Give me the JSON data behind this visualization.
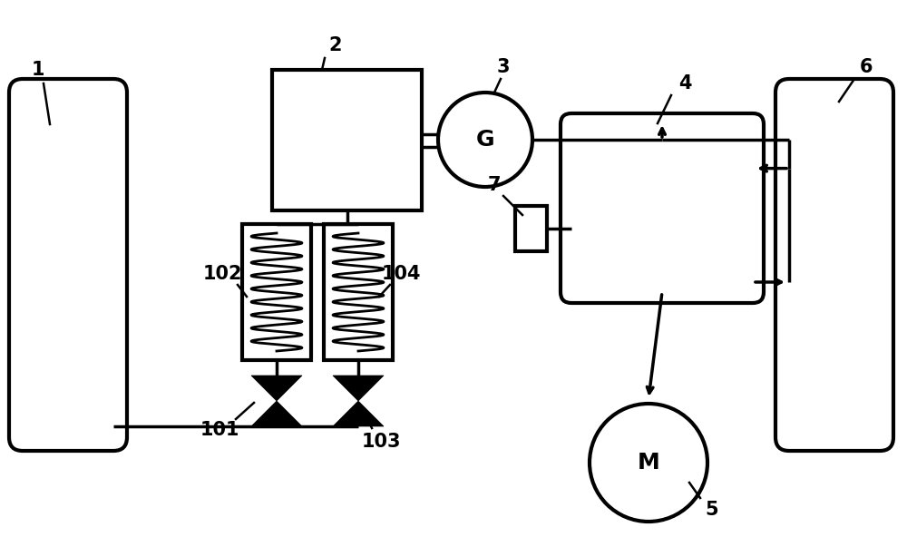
{
  "bg_color": "#ffffff",
  "line_color": "#000000",
  "lw": 2.5,
  "fig_width": 10.0,
  "fig_height": 5.92,
  "dpi": 100
}
